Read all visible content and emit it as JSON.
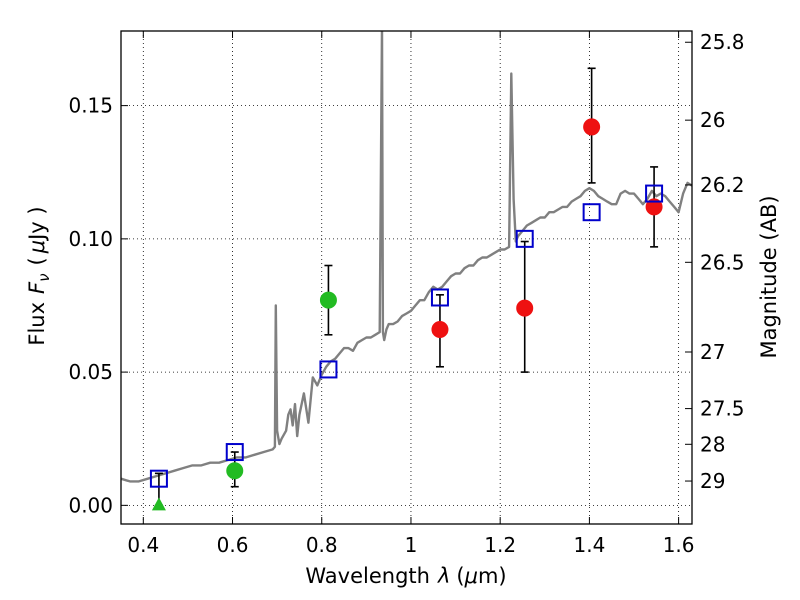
{
  "chart_data": {
    "type": "scatter",
    "xlabel_text": "Wavelength",
    "xlabel_symbol": "λ",
    "xlabel_unit_open": "(",
    "xlabel_unit_mu": "μ",
    "xlabel_unit_rest": "m)",
    "ylabel_text": "Flux",
    "ylabel_symbol": "F",
    "ylabel_subscript": "ν",
    "ylabel_unit_open": "(",
    "ylabel_unit_mu": "μ",
    "ylabel_unit_rest": "Jy )",
    "y2label": "Magnitude (AB)",
    "xlim": [
      0.35,
      1.63
    ],
    "ylim": [
      -0.007,
      0.178
    ],
    "xticks": [
      0.4,
      0.6,
      0.8,
      1.0,
      1.2,
      1.4,
      1.6
    ],
    "xtick_labels": [
      "0.4",
      "0.6",
      "0.8",
      "1",
      "1.2",
      "1.4",
      "1.6"
    ],
    "yticks": [
      0.0,
      0.05,
      0.1,
      0.15
    ],
    "ytick_labels": [
      "0.00",
      "0.05",
      "0.10",
      "0.15"
    ],
    "mag_ticks": [
      25.8,
      26,
      26.2,
      26.5,
      27,
      27.5,
      28,
      29
    ],
    "mag_tick_labels": [
      "25.8",
      "26",
      "26.2",
      "26.5",
      "27",
      "27.5",
      "28",
      "29"
    ],
    "grid": true,
    "colors": {
      "model": "#808080",
      "green": "#22bb22",
      "red": "#ee1111",
      "blue": "#0000cc",
      "errorbar": "#000000"
    },
    "model_spectrum": {
      "name": "model SED",
      "x": [
        0.35,
        0.37,
        0.39,
        0.41,
        0.43,
        0.45,
        0.47,
        0.49,
        0.51,
        0.53,
        0.55,
        0.57,
        0.59,
        0.61,
        0.63,
        0.65,
        0.67,
        0.69,
        0.695,
        0.697,
        0.7,
        0.705,
        0.71,
        0.72,
        0.725,
        0.73,
        0.735,
        0.74,
        0.745,
        0.75,
        0.76,
        0.77,
        0.78,
        0.79,
        0.8,
        0.81,
        0.82,
        0.83,
        0.84,
        0.85,
        0.86,
        0.87,
        0.88,
        0.89,
        0.9,
        0.91,
        0.92,
        0.93,
        0.935,
        0.937,
        0.94,
        0.945,
        0.95,
        0.96,
        0.97,
        0.98,
        0.99,
        1.0,
        1.01,
        1.02,
        1.03,
        1.04,
        1.05,
        1.06,
        1.07,
        1.08,
        1.09,
        1.1,
        1.11,
        1.12,
        1.13,
        1.14,
        1.15,
        1.16,
        1.17,
        1.18,
        1.19,
        1.2,
        1.21,
        1.22,
        1.225,
        1.23,
        1.235,
        1.24,
        1.25,
        1.26,
        1.27,
        1.28,
        1.29,
        1.3,
        1.31,
        1.32,
        1.33,
        1.34,
        1.35,
        1.36,
        1.37,
        1.38,
        1.39,
        1.4,
        1.41,
        1.42,
        1.43,
        1.44,
        1.45,
        1.46,
        1.47,
        1.48,
        1.49,
        1.5,
        1.51,
        1.52,
        1.53,
        1.54,
        1.55,
        1.56,
        1.57,
        1.58,
        1.59,
        1.6,
        1.61,
        1.62,
        1.63
      ],
      "y": [
        0.01,
        0.009,
        0.009,
        0.01,
        0.011,
        0.012,
        0.013,
        0.014,
        0.015,
        0.015,
        0.016,
        0.016,
        0.017,
        0.018,
        0.018,
        0.019,
        0.02,
        0.021,
        0.022,
        0.075,
        0.028,
        0.023,
        0.025,
        0.028,
        0.034,
        0.036,
        0.03,
        0.038,
        0.026,
        0.034,
        0.042,
        0.031,
        0.048,
        0.045,
        0.049,
        0.052,
        0.054,
        0.055,
        0.057,
        0.059,
        0.059,
        0.058,
        0.061,
        0.062,
        0.063,
        0.063,
        0.064,
        0.065,
        0.18,
        0.065,
        0.062,
        0.066,
        0.068,
        0.068,
        0.069,
        0.071,
        0.072,
        0.073,
        0.075,
        0.077,
        0.077,
        0.08,
        0.082,
        0.081,
        0.082,
        0.084,
        0.086,
        0.087,
        0.087,
        0.089,
        0.09,
        0.09,
        0.092,
        0.093,
        0.093,
        0.094,
        0.095,
        0.096,
        0.096,
        0.097,
        0.162,
        0.115,
        0.099,
        0.101,
        0.103,
        0.105,
        0.106,
        0.107,
        0.108,
        0.108,
        0.11,
        0.11,
        0.111,
        0.112,
        0.112,
        0.114,
        0.115,
        0.116,
        0.118,
        0.119,
        0.118,
        0.116,
        0.115,
        0.114,
        0.113,
        0.113,
        0.117,
        0.118,
        0.117,
        0.117,
        0.115,
        0.113,
        0.115,
        0.118,
        0.116,
        0.117,
        0.116,
        0.114,
        0.112,
        0.11,
        0.117,
        0.121,
        0.12
      ]
    },
    "series": [
      {
        "name": "green photometry",
        "marker": "circle",
        "color": "green",
        "points": [
          {
            "x": 0.605,
            "y": 0.013,
            "yerr": [
              0.007,
              0.02
            ]
          },
          {
            "x": 0.815,
            "y": 0.077,
            "yerr": [
              0.064,
              0.09
            ]
          }
        ]
      },
      {
        "name": "green upper limit",
        "marker": "triangle",
        "color": "green",
        "points": [
          {
            "x": 0.435,
            "y": 0.0,
            "yerr": [
              0.0,
              0.012
            ]
          }
        ]
      },
      {
        "name": "red photometry",
        "marker": "circle",
        "color": "red",
        "points": [
          {
            "x": 1.065,
            "y": 0.066,
            "yerr": [
              0.052,
              0.079
            ]
          },
          {
            "x": 1.255,
            "y": 0.074,
            "yerr": [
              0.05,
              0.099
            ]
          },
          {
            "x": 1.405,
            "y": 0.142,
            "yerr": [
              0.121,
              0.164
            ]
          },
          {
            "x": 1.545,
            "y": 0.112,
            "yerr": [
              0.097,
              0.127
            ]
          }
        ]
      },
      {
        "name": "model synthetic photometry",
        "marker": "square",
        "color": "blue",
        "points": [
          {
            "x": 0.435,
            "y": 0.01
          },
          {
            "x": 0.605,
            "y": 0.02
          },
          {
            "x": 0.815,
            "y": 0.051
          },
          {
            "x": 1.065,
            "y": 0.078
          },
          {
            "x": 1.255,
            "y": 0.1
          },
          {
            "x": 1.405,
            "y": 0.11
          },
          {
            "x": 1.545,
            "y": 0.117
          }
        ]
      }
    ]
  }
}
